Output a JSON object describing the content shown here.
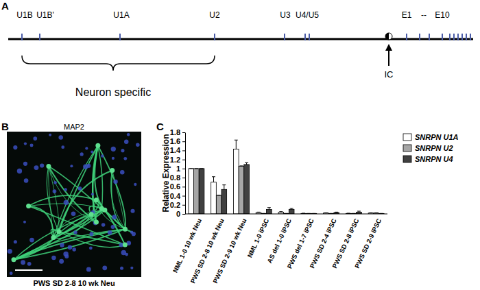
{
  "chart_data": {
    "type": "bar",
    "y_label": "Relative Expression",
    "categories": [
      "NML 1-0 10 wk Neu",
      "PWS SD 2-8 10 wk Neu",
      "PWS SD 2-9 10 wk Neu",
      "NML 1-0 iPSC",
      "AS del 1-0 iPSC",
      "PWS del 1-7 iPSC",
      "PWS SD 2-4 iPSC",
      "PWS SD 2-8 iPSC",
      "PWS SD 2-9 iPSC"
    ],
    "series": [
      {
        "name": "SNRPN U1A",
        "color": "#ffffff",
        "values": [
          1,
          0.7,
          1.43,
          0.03,
          0.04,
          0.01,
          0.02,
          0.01,
          0.02
        ],
        "errors": [
          0,
          0.12,
          0.2,
          0.01,
          0.01,
          0.005,
          0.005,
          0.005,
          0.005
        ]
      },
      {
        "name": "SNRPN U2",
        "color": "#a6a6a6",
        "values": [
          1,
          0.41,
          1.05,
          0.01,
          0.01,
          0.01,
          0.01,
          0.01,
          0.02
        ],
        "errors": [
          0,
          0,
          0.01,
          0,
          0,
          0,
          0,
          0,
          0.005
        ]
      },
      {
        "name": "SNRPN U4",
        "color": "#404040",
        "values": [
          1,
          0.54,
          1.09,
          0.1,
          0.1,
          0.01,
          0.03,
          0.04,
          0.01
        ],
        "errors": [
          0,
          0.1,
          0.04,
          0.04,
          0.02,
          0,
          0.01,
          0.02,
          0
        ]
      }
    ],
    "ylim": [
      0,
      1.8
    ],
    "yticks": [
      0,
      0.2,
      0.4,
      0.6,
      0.8,
      1,
      1.2,
      1.4,
      1.6,
      1.8
    ],
    "grid": false,
    "legend": "top-right"
  },
  "panel_labels": [
    "A",
    "B",
    "C"
  ],
  "diagram": {
    "sites": [
      "U1B",
      "U1B'",
      "U1A",
      "U2",
      "U3",
      "U4/U5",
      "E1",
      "--",
      "E10"
    ],
    "bracket_label": "Neuron specific",
    "arrow_label": "IC"
  },
  "image": {
    "stain": "MAP2",
    "caption": "PWS SD 2-8 10 wk Neu"
  }
}
